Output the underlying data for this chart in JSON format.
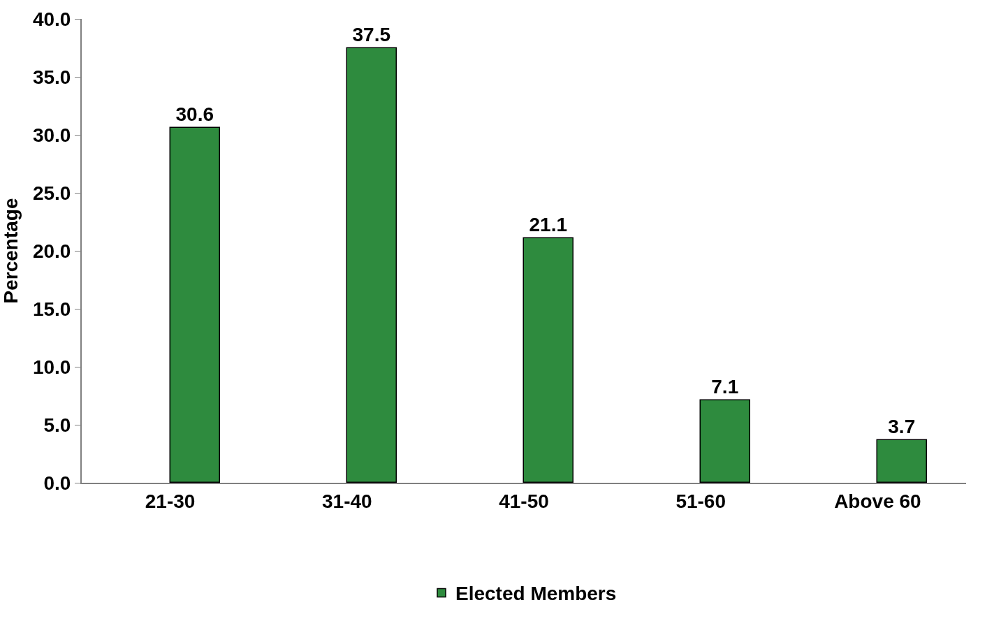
{
  "chart_data": {
    "type": "bar",
    "ylabel": "Percentage",
    "categories": [
      "21-30",
      "31-40",
      "41-50",
      "51-60",
      "Above 60"
    ],
    "series": [
      {
        "name": "Elected Members",
        "color": "#2e8b3e",
        "values": [
          30.6,
          37.5,
          21.1,
          7.1,
          3.7
        ]
      }
    ],
    "ylim": [
      0,
      40
    ],
    "yticks": [
      {
        "value": 0,
        "label": "0.0"
      },
      {
        "value": 5,
        "label": "5.0"
      },
      {
        "value": 10,
        "label": "10.0"
      },
      {
        "value": 15,
        "label": "15.0"
      },
      {
        "value": 20,
        "label": "20.0"
      },
      {
        "value": 25,
        "label": "25.0"
      },
      {
        "value": 30,
        "label": "30.0"
      },
      {
        "value": 35,
        "label": "35.0"
      },
      {
        "value": 40,
        "label": "40.0"
      }
    ],
    "data_labels": true,
    "legend": "bottom"
  }
}
